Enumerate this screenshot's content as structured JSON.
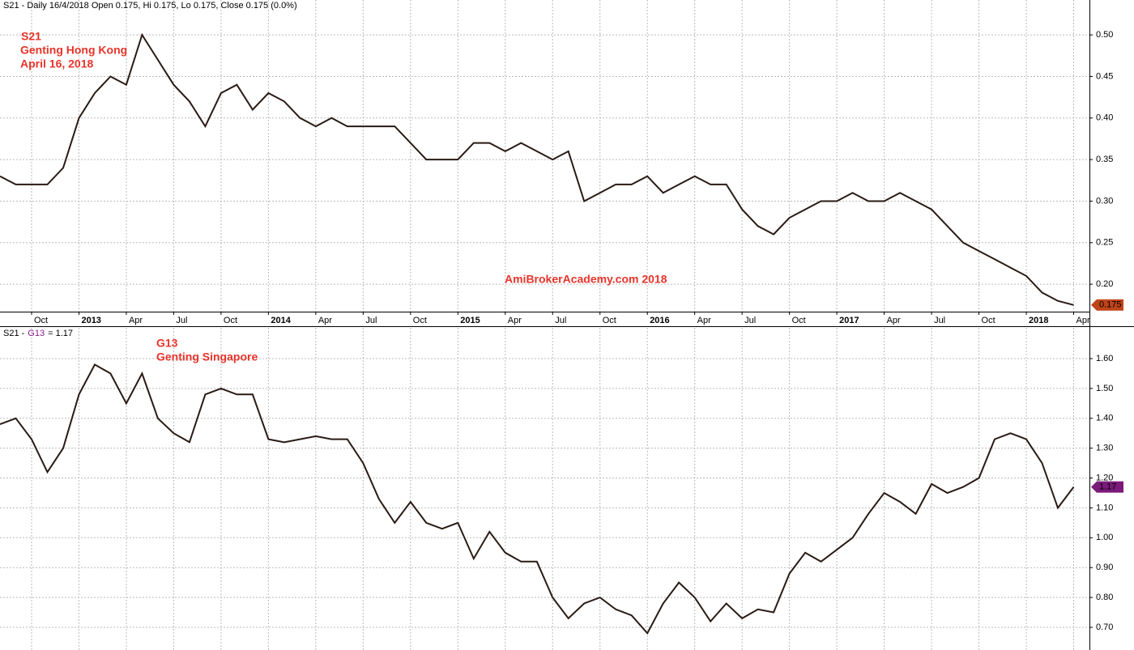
{
  "chart_data": [
    {
      "type": "line",
      "title": "S21 - Daily 16/4/2018 Open 0.175, Hi 0.175, Lo 0.175, Close 0.175 (0.0%)",
      "annotations": [
        "S21",
        "Genting Hong Kong",
        "April 16, 2018"
      ],
      "watermark": "AmiBrokerAcademy.com   2018",
      "x": [
        "2012-08",
        "2012-09",
        "2012-10",
        "2012-11",
        "2012-12",
        "2013-01",
        "2013-02",
        "2013-03",
        "2013-04",
        "2013-05",
        "2013-06",
        "2013-07",
        "2013-08",
        "2013-09",
        "2013-10",
        "2013-11",
        "2013-12",
        "2014-01",
        "2014-02",
        "2014-03",
        "2014-04",
        "2014-05",
        "2014-06",
        "2014-07",
        "2014-08",
        "2014-09",
        "2014-10",
        "2014-11",
        "2014-12",
        "2015-01",
        "2015-02",
        "2015-03",
        "2015-04",
        "2015-05",
        "2015-06",
        "2015-07",
        "2015-08",
        "2015-09",
        "2015-10",
        "2015-11",
        "2015-12",
        "2016-01",
        "2016-02",
        "2016-03",
        "2016-04",
        "2016-05",
        "2016-06",
        "2016-07",
        "2016-08",
        "2016-09",
        "2016-10",
        "2016-11",
        "2016-12",
        "2017-01",
        "2017-02",
        "2017-03",
        "2017-04",
        "2017-05",
        "2017-06",
        "2017-07",
        "2017-08",
        "2017-09",
        "2017-10",
        "2017-11",
        "2017-12",
        "2018-01",
        "2018-02",
        "2018-03",
        "2018-04"
      ],
      "values": [
        0.33,
        0.32,
        0.32,
        0.32,
        0.34,
        0.4,
        0.43,
        0.45,
        0.44,
        0.5,
        0.47,
        0.44,
        0.42,
        0.39,
        0.43,
        0.44,
        0.41,
        0.43,
        0.42,
        0.4,
        0.39,
        0.4,
        0.39,
        0.39,
        0.39,
        0.39,
        0.37,
        0.35,
        0.35,
        0.35,
        0.37,
        0.37,
        0.36,
        0.37,
        0.36,
        0.35,
        0.36,
        0.3,
        0.31,
        0.32,
        0.32,
        0.33,
        0.31,
        0.32,
        0.33,
        0.32,
        0.32,
        0.29,
        0.27,
        0.26,
        0.28,
        0.29,
        0.3,
        0.3,
        0.31,
        0.3,
        0.3,
        0.31,
        0.3,
        0.29,
        0.27,
        0.25,
        0.24,
        0.23,
        0.22,
        0.21,
        0.19,
        0.18,
        0.175
      ],
      "color": "#2a1a14",
      "last_value": {
        "value": 0.175,
        "label": "0.175"
      },
      "tag_color": "#c0441a",
      "xlim": [
        "2012-08",
        "2018-05"
      ],
      "xticks": [
        {
          "value": "2012-10",
          "label": "Oct"
        },
        {
          "value": "2013-01",
          "label": "2013"
        },
        {
          "value": "2013-04",
          "label": "Apr"
        },
        {
          "value": "2013-07",
          "label": "Jul"
        },
        {
          "value": "2013-10",
          "label": "Oct"
        },
        {
          "value": "2014-01",
          "label": "2014"
        },
        {
          "value": "2014-04",
          "label": "Apr"
        },
        {
          "value": "2014-07",
          "label": "Jul"
        },
        {
          "value": "2014-10",
          "label": "Oct"
        },
        {
          "value": "2015-01",
          "label": "2015"
        },
        {
          "value": "2015-04",
          "label": "Apr"
        },
        {
          "value": "2015-07",
          "label": "Jul"
        },
        {
          "value": "2015-10",
          "label": "Oct"
        },
        {
          "value": "2016-01",
          "label": "2016"
        },
        {
          "value": "2016-04",
          "label": "Apr"
        },
        {
          "value": "2016-07",
          "label": "Jul"
        },
        {
          "value": "2016-10",
          "label": "Oct"
        },
        {
          "value": "2017-01",
          "label": "2017"
        },
        {
          "value": "2017-04",
          "label": "Apr"
        },
        {
          "value": "2017-07",
          "label": "Jul"
        },
        {
          "value": "2017-10",
          "label": "Oct"
        },
        {
          "value": "2018-01",
          "label": "2018"
        },
        {
          "value": "2018-04",
          "label": "Apr"
        }
      ],
      "ylim": [
        0.167,
        0.542
      ],
      "yticks": [
        {
          "value": 0.2,
          "label": "0.20"
        },
        {
          "value": 0.25,
          "label": "0.25"
        },
        {
          "value": 0.3,
          "label": "0.30"
        },
        {
          "value": 0.35,
          "label": "0.35"
        },
        {
          "value": 0.4,
          "label": "0.40"
        },
        {
          "value": 0.45,
          "label": "0.45"
        },
        {
          "value": 0.5,
          "label": "0.50"
        }
      ],
      "grid": true
    },
    {
      "type": "line",
      "title": [
        "S21 -",
        "G13",
        "= 1.17"
      ],
      "annotations": [
        "G13",
        "Genting Singapore"
      ],
      "x": [
        "2012-08",
        "2012-09",
        "2012-10",
        "2012-11",
        "2012-12",
        "2013-01",
        "2013-02",
        "2013-03",
        "2013-04",
        "2013-05",
        "2013-06",
        "2013-07",
        "2013-08",
        "2013-09",
        "2013-10",
        "2013-11",
        "2013-12",
        "2014-01",
        "2014-02",
        "2014-03",
        "2014-04",
        "2014-05",
        "2014-06",
        "2014-07",
        "2014-08",
        "2014-09",
        "2014-10",
        "2014-11",
        "2014-12",
        "2015-01",
        "2015-02",
        "2015-03",
        "2015-04",
        "2015-05",
        "2015-06",
        "2015-07",
        "2015-08",
        "2015-09",
        "2015-10",
        "2015-11",
        "2015-12",
        "2016-01",
        "2016-02",
        "2016-03",
        "2016-04",
        "2016-05",
        "2016-06",
        "2016-07",
        "2016-08",
        "2016-09",
        "2016-10",
        "2016-11",
        "2016-12",
        "2017-01",
        "2017-02",
        "2017-03",
        "2017-04",
        "2017-05",
        "2017-06",
        "2017-07",
        "2017-08",
        "2017-09",
        "2017-10",
        "2017-11",
        "2017-12",
        "2018-01",
        "2018-02",
        "2018-03",
        "2018-04"
      ],
      "values": [
        1.38,
        1.4,
        1.33,
        1.22,
        1.3,
        1.48,
        1.58,
        1.55,
        1.45,
        1.55,
        1.4,
        1.35,
        1.32,
        1.48,
        1.5,
        1.48,
        1.48,
        1.33,
        1.32,
        1.33,
        1.34,
        1.33,
        1.33,
        1.25,
        1.13,
        1.05,
        1.12,
        1.05,
        1.03,
        1.05,
        0.93,
        1.02,
        0.95,
        0.92,
        0.92,
        0.8,
        0.73,
        0.78,
        0.8,
        0.76,
        0.74,
        0.68,
        0.78,
        0.85,
        0.8,
        0.72,
        0.78,
        0.73,
        0.76,
        0.75,
        0.88,
        0.95,
        0.92,
        0.96,
        1.0,
        1.08,
        1.15,
        1.12,
        1.08,
        1.18,
        1.15,
        1.17,
        1.2,
        1.33,
        1.35,
        1.33,
        1.25,
        1.1,
        1.17
      ],
      "color": "#2a1a14",
      "last_value": {
        "value": 1.17,
        "label": "1.17"
      },
      "tag_color": "#7b1a7b",
      "xlim": [
        "2012-08",
        "2018-05"
      ],
      "ylim": [
        0.624,
        1.703
      ],
      "yticks": [
        {
          "value": 0.7,
          "label": "0.70"
        },
        {
          "value": 0.8,
          "label": "0.80"
        },
        {
          "value": 0.9,
          "label": "0.90"
        },
        {
          "value": 1.0,
          "label": "1.00"
        },
        {
          "value": 1.1,
          "label": "1.10"
        },
        {
          "value": 1.2,
          "label": "1.20"
        },
        {
          "value": 1.3,
          "label": "1.30"
        },
        {
          "value": 1.4,
          "label": "1.40"
        },
        {
          "value": 1.5,
          "label": "1.50"
        },
        {
          "value": 1.6,
          "label": "1.60"
        }
      ],
      "grid": true
    }
  ]
}
